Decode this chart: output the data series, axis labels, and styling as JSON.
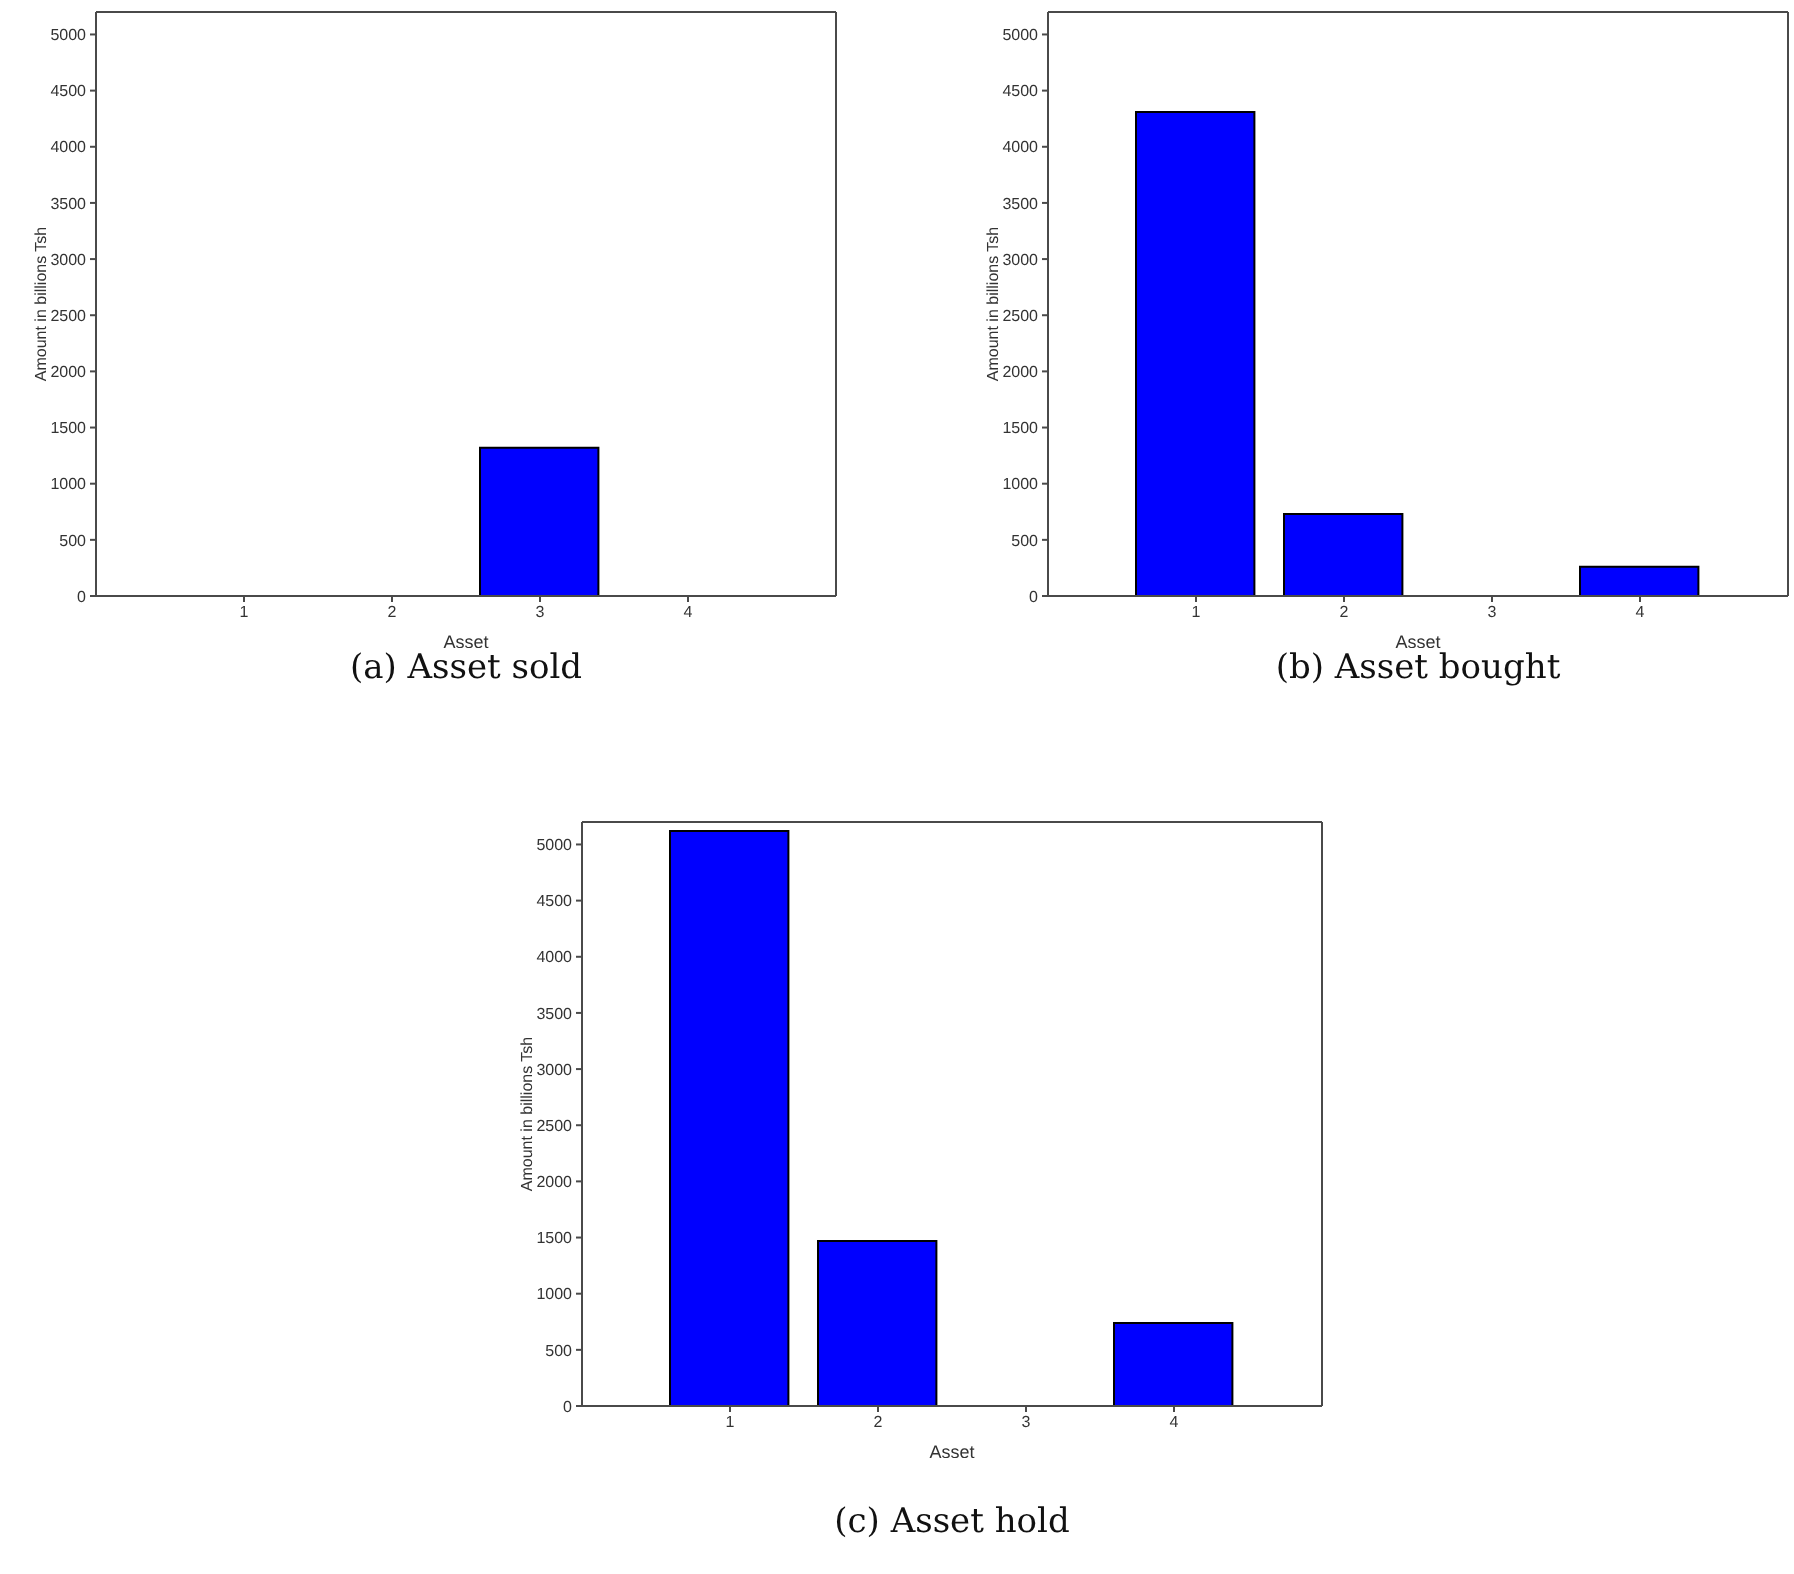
{
  "chart_data": [
    {
      "type": "bar",
      "title": "(a) Asset sold",
      "xlabel": "Asset",
      "ylabel": "Amount in billions Tsh",
      "x": [
        1,
        2,
        3,
        4
      ],
      "values": [
        0,
        0,
        1320,
        0
      ],
      "color": "#0000ff",
      "xlim": [
        0,
        5
      ],
      "xticks": [
        1,
        2,
        3,
        4
      ],
      "ylim": [
        0,
        5200
      ],
      "yticks": [
        0,
        500,
        1000,
        1500,
        2000,
        2500,
        3000,
        3500,
        4000,
        4500,
        5000
      ]
    },
    {
      "type": "bar",
      "title": "(b) Asset bought",
      "xlabel": "Asset",
      "ylabel": "Amount in billions Tsh",
      "x": [
        1,
        2,
        3,
        4
      ],
      "values": [
        4310,
        730,
        0,
        260
      ],
      "color": "#0000ff",
      "xlim": [
        0,
        5
      ],
      "xticks": [
        1,
        2,
        3,
        4
      ],
      "ylim": [
        0,
        5200
      ],
      "yticks": [
        0,
        500,
        1000,
        1500,
        2000,
        2500,
        3000,
        3500,
        4000,
        4500,
        5000
      ]
    },
    {
      "type": "bar",
      "title": "(c) Asset hold",
      "xlabel": "Asset",
      "ylabel": "Amount in billions Tsh",
      "x": [
        1,
        2,
        3,
        4
      ],
      "values": [
        5120,
        1470,
        0,
        740
      ],
      "color": "#0000ff",
      "xlim": [
        0,
        5
      ],
      "xticks": [
        1,
        2,
        3,
        4
      ],
      "ylim": [
        0,
        5200
      ],
      "yticks": [
        0,
        500,
        1000,
        1500,
        2000,
        2500,
        3000,
        3500,
        4000,
        4500,
        5000
      ]
    }
  ]
}
